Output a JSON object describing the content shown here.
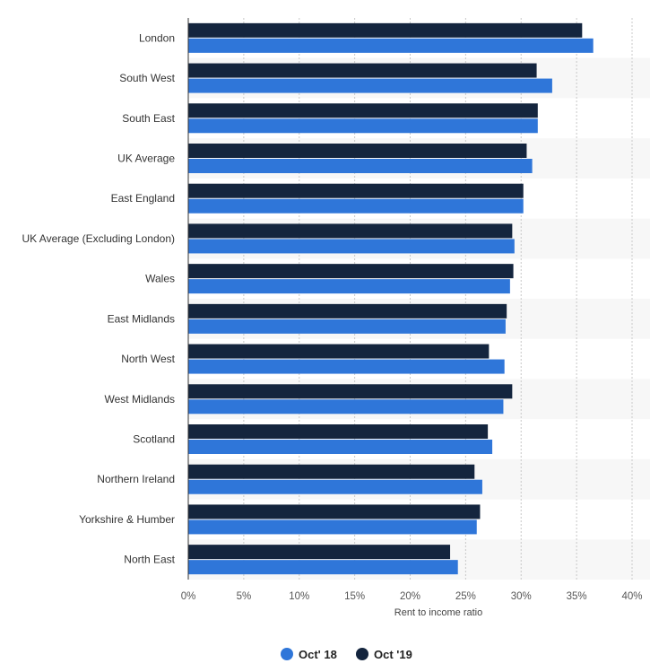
{
  "chart_data": {
    "type": "bar",
    "orientation": "horizontal",
    "categories": [
      "London",
      "South West",
      "South East",
      "UK Average",
      "East England",
      "UK Average (Excluding London)",
      "Wales",
      "East Midlands",
      "North West",
      "West Midlands",
      "Scotland",
      "Northern Ireland",
      "Yorkshire & Humber",
      "North East"
    ],
    "series": [
      {
        "name": "Oct '19",
        "color": "#14253e",
        "values": [
          35.5,
          31.4,
          31.5,
          30.5,
          30.2,
          29.2,
          29.3,
          28.7,
          27.1,
          29.2,
          27.0,
          25.8,
          26.3,
          23.6
        ]
      },
      {
        "name": "Oct' 18",
        "color": "#2f76d9",
        "values": [
          36.5,
          32.8,
          31.5,
          31.0,
          30.2,
          29.4,
          29.0,
          28.6,
          28.5,
          28.4,
          27.4,
          26.5,
          26.0,
          24.3
        ]
      }
    ],
    "xlabel": "Rent to income ratio",
    "ylabel": "",
    "xlim": [
      0,
      40
    ],
    "xticks": [
      "0%",
      "5%",
      "10%",
      "15%",
      "20%",
      "25%",
      "30%",
      "35%",
      "40%"
    ],
    "grid": true,
    "legend": {
      "position": "bottom-center",
      "items": [
        {
          "label": "Oct' 18",
          "color": "#2f76d9"
        },
        {
          "label": "Oct '19",
          "color": "#14253e"
        }
      ]
    }
  }
}
